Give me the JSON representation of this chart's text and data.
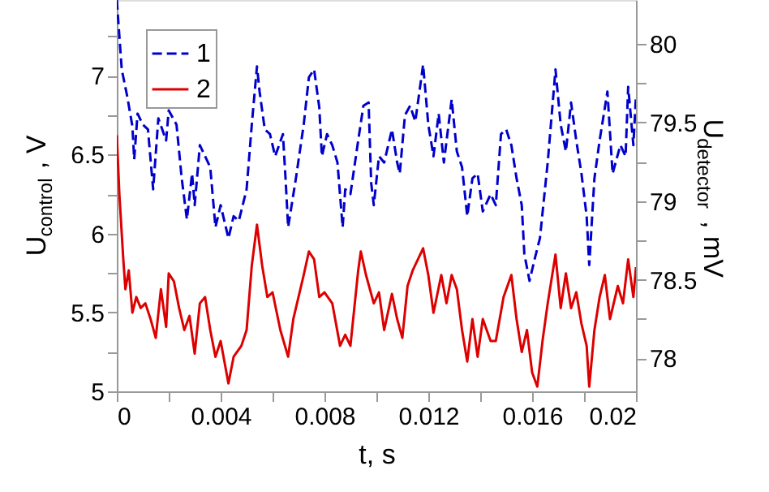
{
  "chart_data": {
    "type": "line",
    "xlabel": "t, s",
    "ylabel": "U$_{control}$, V",
    "y2label": "U$_{detector}$, mV",
    "xlim": [
      0,
      0.02
    ],
    "ylim": [
      5,
      7.48
    ],
    "y2lim": [
      77.79,
      80.28
    ],
    "xticks": [
      0,
      {
        "value": 0.002,
        "label": null
      },
      0.004,
      {
        "value": 0.006,
        "label": null
      },
      0.008,
      {
        "value": 0.01,
        "label": null
      },
      0.012,
      {
        "value": 0.014,
        "label": null
      },
      0.016,
      {
        "value": 0.018,
        "label": null
      },
      0.02
    ],
    "yticks": [
      5,
      {
        "value": 5.25,
        "label": null
      },
      5.5,
      {
        "value": 5.75,
        "label": null
      },
      6,
      {
        "value": 6.25,
        "label": null
      },
      6.5,
      {
        "value": 6.75,
        "label": null
      },
      7,
      {
        "value": 7.25,
        "label": null
      }
    ],
    "y2ticks": [
      78,
      {
        "value": 78.25,
        "label": null
      },
      78.5,
      {
        "value": 78.75,
        "label": null
      },
      79,
      {
        "value": 79.25,
        "label": null
      },
      79.5,
      {
        "value": 79.75,
        "label": null
      },
      80
    ],
    "grid": false,
    "legend": "top left",
    "marker": "none",
    "series": [
      {
        "name": "1",
        "color": "#0000cc",
        "line_style": "dashed",
        "x": [
          0,
          0.00019,
          0.0004,
          0.0006,
          0.00067,
          0.0008,
          0.001,
          0.0012,
          0.0014,
          0.0016,
          0.0019,
          0.002,
          0.0023,
          0.0025,
          0.0027,
          0.0029,
          0.003,
          0.0032,
          0.0034,
          0.0036,
          0.0038,
          0.004,
          0.0043,
          0.0045,
          0.0047,
          0.005,
          0.0052,
          0.0054,
          0.0055,
          0.0057,
          0.0059,
          0.0061,
          0.0064,
          0.0065,
          0.0066,
          0.0069,
          0.0072,
          0.0074,
          0.0076,
          0.0078,
          0.0079,
          0.0081,
          0.0083,
          0.0085,
          0.0087,
          0.0088,
          0.009,
          0.0093,
          0.0095,
          0.0097,
          0.0098,
          0.0099,
          0.0101,
          0.0103,
          0.0106,
          0.0108,
          0.0109,
          0.0111,
          0.0113,
          0.0115,
          0.0118,
          0.012,
          0.0122,
          0.0124,
          0.0126,
          0.0129,
          0.0131,
          0.0133,
          0.0135,
          0.0137,
          0.0139,
          0.0141,
          0.0144,
          0.0146,
          0.0148,
          0.015,
          0.0152,
          0.0154,
          0.0156,
          0.0157,
          0.0159,
          0.0161,
          0.0163,
          0.0166,
          0.0169,
          0.0171,
          0.0173,
          0.0175,
          0.0177,
          0.0179,
          0.0181,
          0.0182,
          0.0184,
          0.0186,
          0.0189,
          0.0191,
          0.0194,
          0.0196,
          0.0197,
          0.0199,
          0.02
        ],
        "values": [
          7.48,
          7.04,
          6.87,
          6.68,
          6.47,
          6.76,
          6.69,
          6.66,
          6.28,
          6.73,
          6.59,
          6.78,
          6.69,
          6.35,
          6.09,
          6.38,
          6.18,
          6.56,
          6.49,
          6.42,
          6.04,
          6.18,
          5.97,
          6.11,
          6.08,
          6.28,
          6.69,
          7.06,
          6.9,
          6.66,
          6.63,
          6.49,
          6.63,
          6.35,
          6.04,
          6.35,
          6.69,
          6.99,
          7.04,
          6.8,
          6.49,
          6.63,
          6.56,
          6.45,
          6.04,
          6.28,
          6.25,
          6.59,
          6.81,
          6.83,
          6.32,
          6.18,
          6.49,
          6.45,
          6.66,
          6.45,
          6.38,
          6.75,
          6.81,
          6.71,
          7.07,
          6.69,
          6.49,
          6.76,
          6.45,
          6.85,
          6.52,
          6.42,
          6.11,
          6.35,
          6.38,
          6.14,
          6.25,
          6.18,
          6.63,
          6.66,
          6.56,
          6.35,
          6.18,
          5.87,
          5.7,
          5.84,
          5.97,
          6.45,
          7.04,
          6.69,
          6.52,
          6.83,
          6.59,
          6.38,
          6.11,
          5.8,
          6.35,
          6.59,
          6.9,
          6.38,
          6.56,
          6.49,
          6.93,
          6.56,
          6.87
        ]
      },
      {
        "name": "2",
        "color": "#dd0000",
        "line_style": "solid",
        "axis": "y2",
        "x": [
          0,
          0.0001,
          0.00025,
          0.00033,
          0.00046,
          0.0006,
          0.00075,
          0.00092,
          0.0011,
          0.0013,
          0.0015,
          0.0017,
          0.0019,
          0.002,
          0.0022,
          0.0024,
          0.0026,
          0.0028,
          0.003,
          0.0032,
          0.0034,
          0.0036,
          0.0038,
          0.004,
          0.0043,
          0.0045,
          0.0048,
          0.005,
          0.0052,
          0.0054,
          0.0056,
          0.0058,
          0.006,
          0.0063,
          0.0066,
          0.0068,
          0.0072,
          0.0074,
          0.0076,
          0.0078,
          0.008,
          0.0083,
          0.0086,
          0.0088,
          0.009,
          0.0093,
          0.0094,
          0.0096,
          0.0099,
          0.0101,
          0.0103,
          0.0106,
          0.0108,
          0.011,
          0.0112,
          0.0114,
          0.0118,
          0.012,
          0.0122,
          0.0125,
          0.0127,
          0.0129,
          0.0131,
          0.0133,
          0.0135,
          0.0137,
          0.0139,
          0.0141,
          0.0144,
          0.0146,
          0.0149,
          0.0152,
          0.0154,
          0.0156,
          0.0158,
          0.016,
          0.0162,
          0.0164,
          0.0166,
          0.0169,
          0.0171,
          0.0173,
          0.0175,
          0.0177,
          0.0179,
          0.0181,
          0.0182,
          0.0184,
          0.0186,
          0.0188,
          0.019,
          0.0193,
          0.0195,
          0.0197,
          0.0199,
          0.02
        ],
        "values": [
          79.42,
          79.04,
          78.63,
          78.44,
          78.56,
          78.29,
          78.39,
          78.32,
          78.35,
          78.25,
          78.13,
          78.44,
          78.2,
          78.54,
          78.49,
          78.32,
          78.18,
          78.27,
          78.03,
          78.35,
          78.39,
          78.18,
          78.01,
          78.11,
          77.84,
          78.01,
          78.08,
          78.18,
          78.59,
          78.85,
          78.59,
          78.39,
          78.42,
          78.18,
          78.01,
          78.25,
          78.53,
          78.68,
          78.63,
          78.39,
          78.42,
          78.35,
          78.08,
          78.15,
          78.08,
          78.56,
          78.68,
          78.53,
          78.35,
          78.42,
          78.18,
          78.41,
          78.25,
          78.13,
          78.46,
          78.56,
          78.7,
          78.53,
          78.29,
          78.53,
          78.35,
          78.53,
          78.44,
          78.18,
          77.98,
          78.25,
          78.01,
          78.25,
          78.11,
          78.11,
          78.39,
          78.53,
          78.25,
          78.04,
          78.18,
          77.91,
          77.82,
          78.11,
          78.35,
          78.66,
          78.32,
          78.54,
          78.32,
          78.42,
          78.22,
          78.08,
          77.82,
          78.18,
          78.39,
          78.53,
          78.25,
          78.46,
          78.35,
          78.63,
          78.39,
          78.58
        ]
      }
    ]
  }
}
